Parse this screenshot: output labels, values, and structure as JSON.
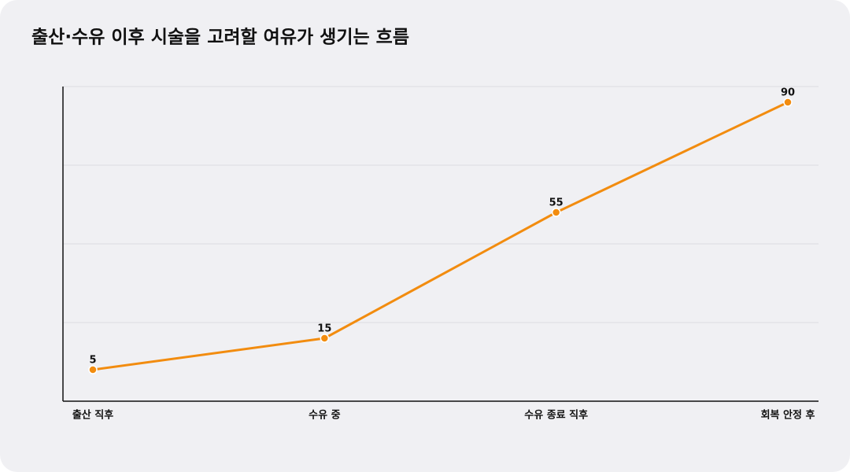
{
  "chart_data": {
    "type": "line",
    "title": "출산·수유 이후 시술을 고려할 여유가 생기는 흐름",
    "categories": [
      "출산 직후",
      "수유 중",
      "수유 종료 직후",
      "회복 안정 후"
    ],
    "values": [
      5,
      15,
      55,
      90
    ],
    "color": "#f28c0f",
    "ylim": [
      -5,
      95
    ],
    "yticks": [
      20,
      45,
      70,
      95
    ],
    "grid": true
  }
}
